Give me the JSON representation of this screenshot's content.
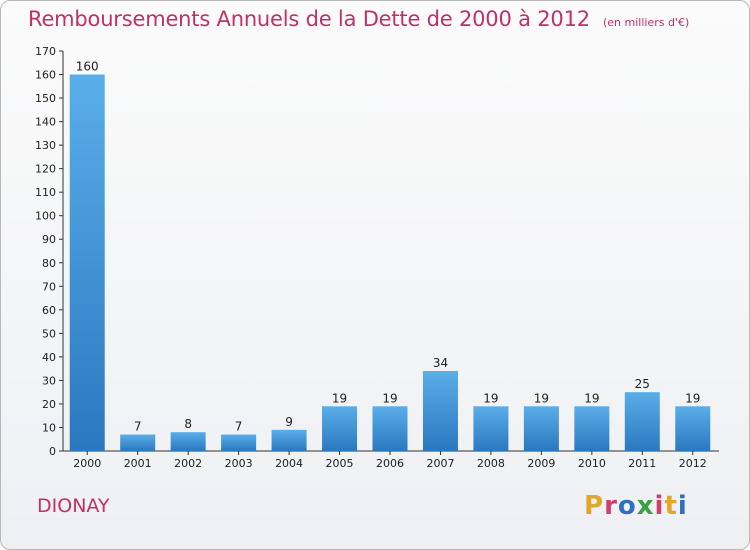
{
  "header": {
    "title": "Remboursements Annuels de la Dette de 2000 à 2012",
    "unit": "(en milliers d'€)"
  },
  "footer": {
    "commune": "DIONAY",
    "logo_letters": [
      "P",
      "r",
      "o",
      "x",
      "i",
      "t",
      "i"
    ]
  },
  "colors": {
    "accent": "#c0306a",
    "bar_top": "#5aaee8",
    "bar_bottom": "#2a78c0"
  },
  "chart_data": {
    "type": "bar",
    "title": "Remboursements Annuels de la Dette de 2000 à 2012",
    "xlabel": "",
    "ylabel": "",
    "categories": [
      "2000",
      "2001",
      "2002",
      "2003",
      "2004",
      "2005",
      "2006",
      "2007",
      "2008",
      "2009",
      "2010",
      "2011",
      "2012"
    ],
    "values": [
      160,
      7,
      8,
      7,
      9,
      19,
      19,
      34,
      19,
      19,
      19,
      25,
      19
    ],
    "ylim": [
      0,
      170
    ],
    "yticks": [
      0,
      10,
      20,
      30,
      40,
      50,
      60,
      70,
      80,
      90,
      100,
      110,
      120,
      130,
      140,
      150,
      160,
      170
    ],
    "grid": false,
    "legend": "none"
  }
}
